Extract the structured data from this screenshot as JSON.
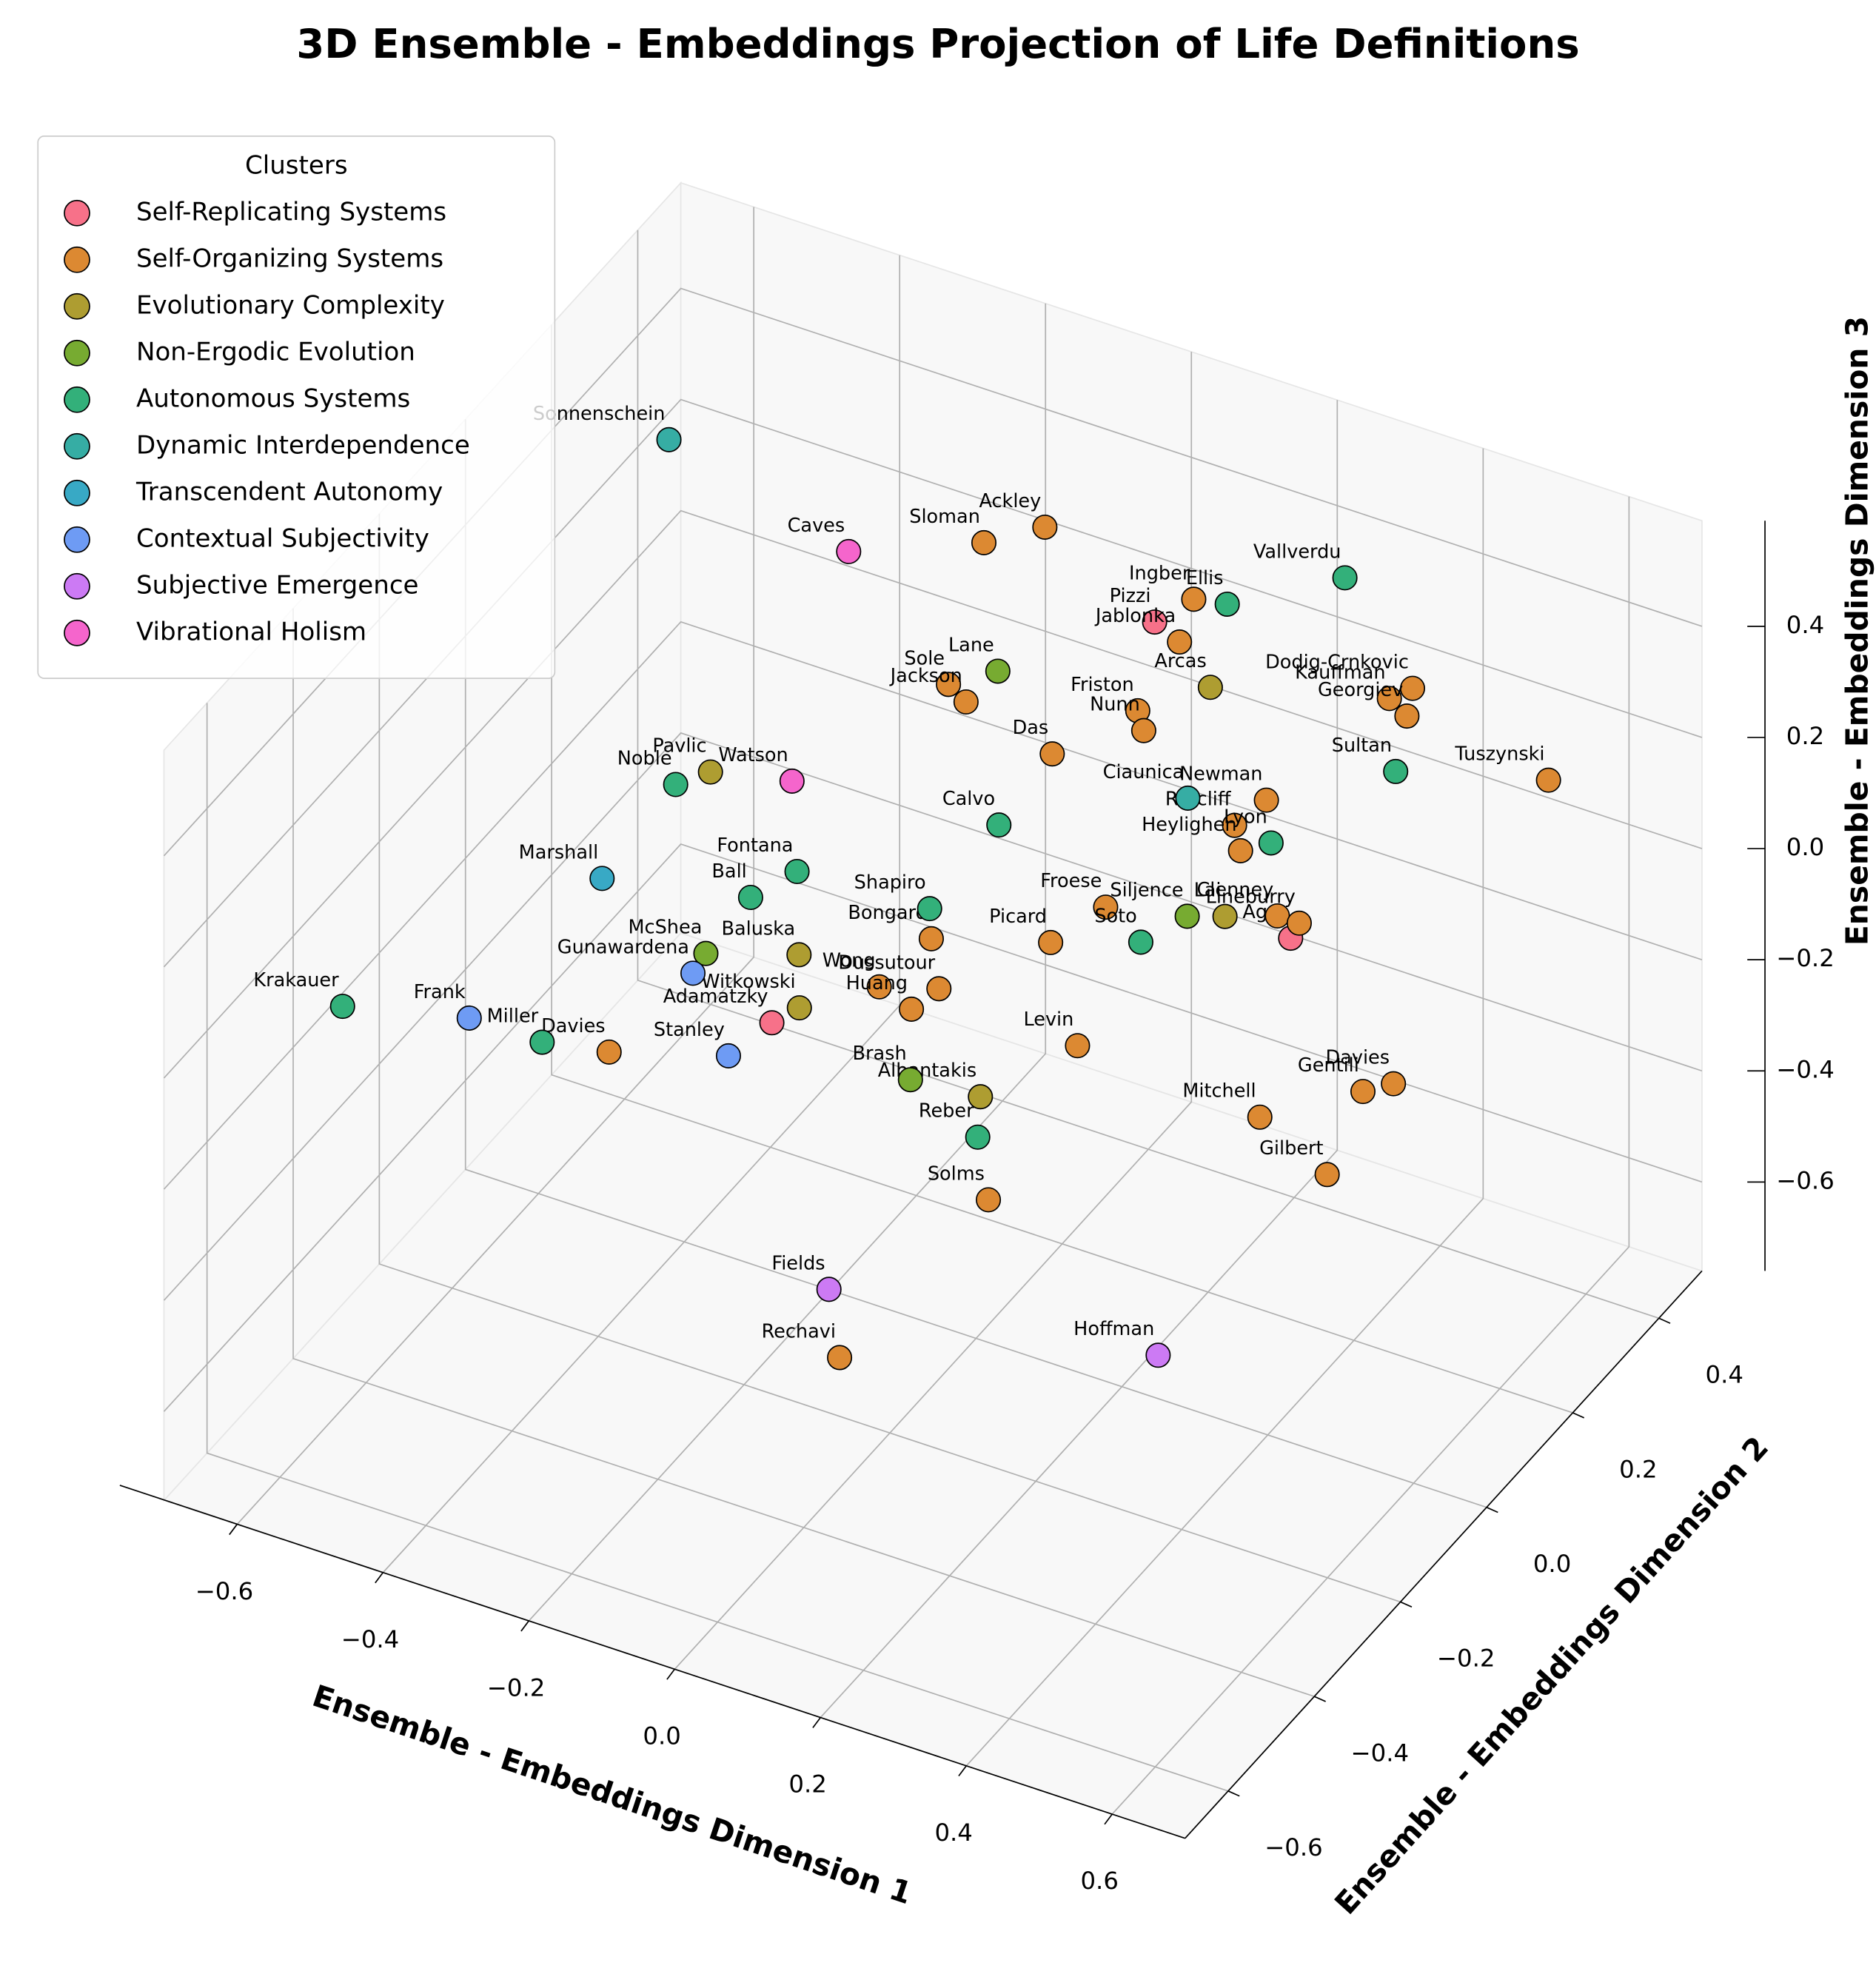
{
  "chart_data": {
    "type": "scatter3d",
    "title": "3D Ensemble - Embeddings Projection of Life Definitions",
    "xlabel": "Ensemble - Embeddings Dimension 1",
    "ylabel": "Ensemble - Embeddings Dimension 2",
    "zlabel": "Ensemble - Embeddings Dimension 3",
    "legend_title": "Clusters",
    "legend_loc": "upper left",
    "grid": true,
    "xlim": [
      -0.7,
      0.7
    ],
    "ylim": [
      -0.7,
      0.5
    ],
    "zlim": [
      -0.76,
      0.59
    ],
    "xticks": [
      {
        "value": -0.6,
        "label": "−0.6"
      },
      {
        "value": -0.4,
        "label": "−0.4"
      },
      {
        "value": -0.2,
        "label": "−0.2"
      },
      {
        "value": 0,
        "label": "0.0"
      },
      0.2,
      0.4,
      0.6
    ],
    "yticks": [
      {
        "value": -0.6,
        "label": "−0.6"
      },
      {
        "value": -0.4,
        "label": "−0.4"
      },
      {
        "value": -0.2,
        "label": "−0.2"
      },
      {
        "value": 0,
        "label": "0.0"
      },
      0.2,
      0.4
    ],
    "zticks": [
      {
        "value": -0.6,
        "label": "−0.6"
      },
      {
        "value": -0.4,
        "label": "−0.4"
      },
      {
        "value": -0.2,
        "label": "−0.2"
      },
      {
        "value": 0,
        "label": "0.0"
      },
      0.2,
      0.4
    ],
    "series": [
      {
        "name": "Self-Replicating Systems",
        "color": "#f77189",
        "labels": [
          "Pizzi",
          "Adamatzky",
          "Agar"
        ],
        "x": [
          0.05,
          -0.15,
          0.39
        ],
        "y": [
          0.33,
          -0.22,
          0.07
        ],
        "z": [
          0.27,
          -0.07,
          0.07
        ]
      },
      {
        "name": "Self-Organizing Systems",
        "color": "#dc8932",
        "labels": [
          "Sloman",
          "Ackley",
          "Ingber",
          "Jablonka",
          "Sole",
          "Jackson",
          "Friston",
          "Nunn",
          "Kauffman",
          "Dodig-Crnkovic",
          "Georgiev",
          "Das",
          "Tuszynski",
          "Newman",
          "Ratcliff",
          "Heylighen",
          "Froese",
          "Clenney",
          "Lineburry",
          "Bongard",
          "Picard",
          "Wong",
          "Dussutour",
          "Huang",
          "Davies",
          "Levin",
          "Mitchell",
          "Gentili",
          "Davies",
          "Gilbert",
          "Solms",
          "Rechavi"
        ],
        "x": [
          -0.19,
          -0.13,
          0.08,
          0.09,
          -0.15,
          -0.12,
          0.08,
          0.1,
          0.36,
          0.38,
          0.39,
          0.01,
          0.59,
          0.28,
          0.26,
          0.28,
          0.16,
          0.36,
          0.39,
          -0.02,
          0.12,
          -0.05,
          0.02,
          0.0,
          -0.32,
          0.21,
          0.46,
          0.56,
          0.59,
          0.57,
          0.2,
          0.12
        ],
        "y": [
          0.34,
          0.38,
          0.37,
          0.32,
          0.19,
          0.18,
          0.24,
          0.22,
          0.35,
          0.37,
          0.34,
          0.16,
          0.33,
          0.2,
          0.16,
          0.14,
          0.03,
          0.09,
          0.09,
          -0.07,
          -0.03,
          -0.14,
          -0.12,
          -0.15,
          -0.31,
          -0.12,
          -0.12,
          -0.05,
          -0.03,
          -0.15,
          -0.31,
          -0.52
        ],
        "z": [
          0.3,
          0.32,
          0.29,
          0.26,
          0.19,
          0.18,
          0.2,
          0.19,
          0.25,
          0.26,
          0.24,
          0.16,
          0.22,
          0.16,
          0.14,
          0.12,
          0.06,
          0.08,
          0.08,
          0.01,
          0.03,
          -0.03,
          -0.02,
          -0.04,
          -0.12,
          -0.04,
          -0.06,
          -0.03,
          -0.02,
          -0.09,
          -0.16,
          -0.3
        ]
      },
      {
        "name": "Evolutionary Complexity",
        "color": "#ae9d31",
        "labels": [
          "Pavlic",
          "Arcas",
          "Baluska",
          "Witkowski",
          "Albantakis",
          "Lai"
        ],
        "x": [
          -0.37,
          0.15,
          -0.16,
          -0.13,
          0.13,
          0.3
        ],
        "y": [
          0.01,
          0.29,
          -0.14,
          -0.19,
          -0.21,
          0.07
        ],
        "z": [
          0.09,
          0.23,
          -0.02,
          -0.06,
          -0.09,
          0.07
        ]
      },
      {
        "name": "Non-Ergodic Evolution",
        "color": "#77ab31",
        "labels": [
          "Lane",
          "McShea",
          "Brash",
          "Siljence"
        ],
        "x": [
          -0.1,
          -0.27,
          0.04,
          0.26
        ],
        "y": [
          0.22,
          -0.17,
          -0.22,
          0.05
        ],
        "z": [
          0.21,
          -0.04,
          -0.09,
          0.07
        ]
      },
      {
        "name": "Autonomous Systems",
        "color": "#33b07a",
        "labels": [
          "Noble",
          "Vallverdu",
          "Ellis",
          "Sultan",
          "Calvo",
          "Fontana",
          "Ball",
          "Shapiro",
          "Lyon",
          "Soto",
          "Krakauer",
          "Miller",
          "Reber"
        ],
        "x": [
          -0.4,
          0.24,
          0.12,
          0.41,
          -0.01,
          -0.21,
          -0.25,
          -0.04,
          0.31,
          0.22,
          -0.65,
          -0.4,
          0.15
        ],
        "y": [
          -0.02,
          0.45,
          0.38,
          0.28,
          0.07,
          -0.06,
          -0.1,
          -0.04,
          0.16,
          0.01,
          -0.37,
          -0.33,
          -0.25
        ],
        "z": [
          0.08,
          0.33,
          0.29,
          0.2,
          0.1,
          0.04,
          0.01,
          0.03,
          0.13,
          0.04,
          -0.13,
          -0.12,
          -0.12
        ]
      },
      {
        "name": "Dynamic Interdependence",
        "color": "#36ada4",
        "labels": [
          "Sonnenschein",
          "Ciaunica"
        ],
        "x": [
          -0.61,
          0.19
        ],
        "y": [
          0.32,
          0.17
        ],
        "z": [
          0.32,
          0.15
        ]
      },
      {
        "name": "Transcendent Autonomy",
        "color": "#38a9c5",
        "labels": [
          "Marshall"
        ],
        "x": [
          -0.43
        ],
        "y": [
          -0.14
        ],
        "z": [
          0.0
        ]
      },
      {
        "name": "Contextual Subjectivity",
        "color": "#6e9bf4",
        "labels": [
          "Gunawardena",
          "Frank",
          "Stanley"
        ],
        "x": [
          -0.27,
          -0.5,
          -0.18
        ],
        "y": [
          -0.2,
          -0.33,
          -0.27
        ],
        "z": [
          -0.05,
          -0.12,
          -0.1
        ]
      },
      {
        "name": "Subjective Emergence",
        "color": "#cc7af4",
        "labels": [
          "Fields",
          "Hoffman"
        ],
        "x": [
          0.07,
          0.48
        ],
        "y": [
          -0.46,
          -0.39
        ],
        "z": [
          -0.25,
          -0.25
        ]
      },
      {
        "name": "Vibrational Holism",
        "color": "#f565cc",
        "labels": [
          "Caves",
          "Watson"
        ],
        "x": [
          -0.34,
          -0.27
        ],
        "y": [
          0.28,
          0.03
        ],
        "z": [
          0.27,
          0.1
        ]
      }
    ]
  }
}
